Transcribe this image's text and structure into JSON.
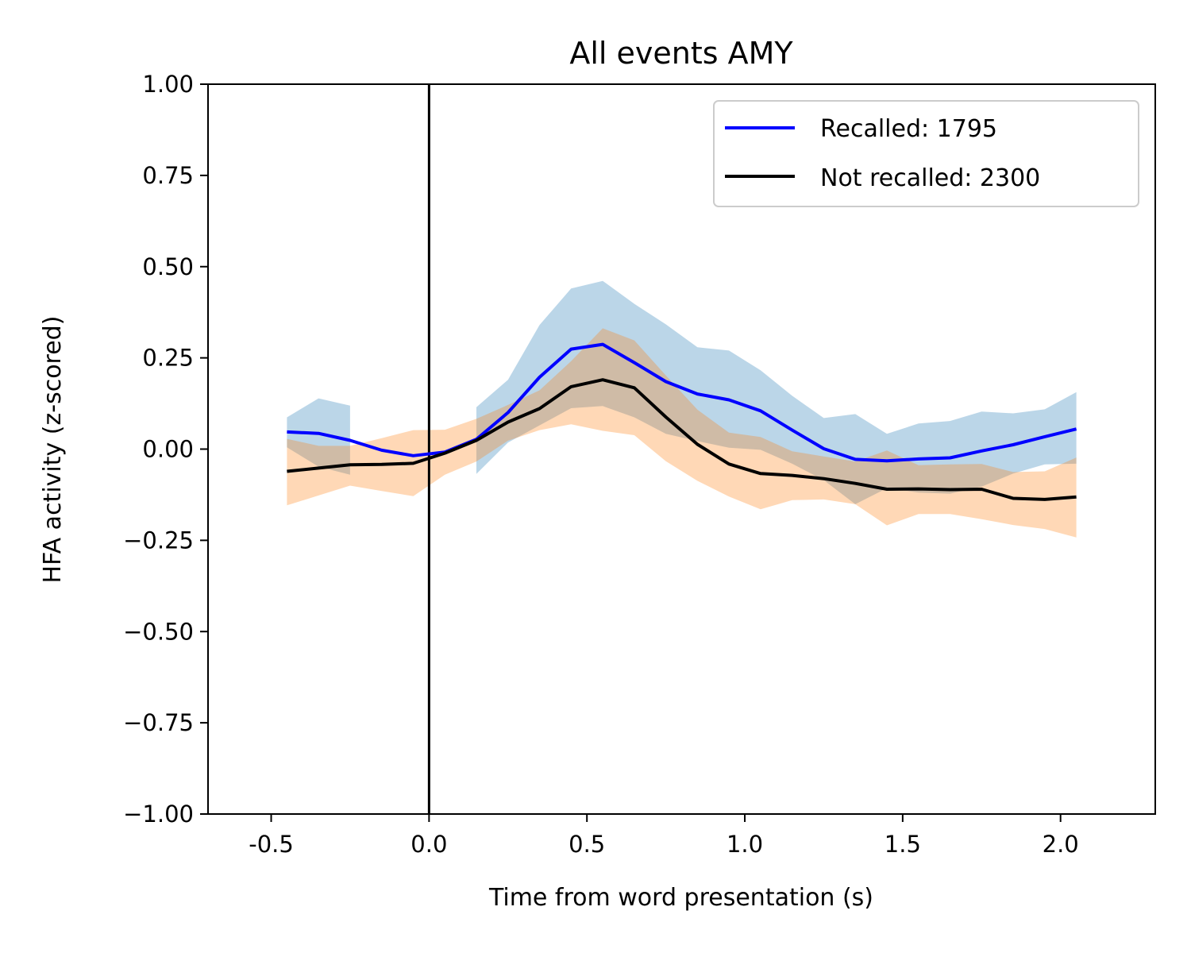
{
  "chart_data": {
    "type": "line",
    "title": "All events AMY",
    "xlabel": "Time from word presentation (s)",
    "ylabel": "HFA activity (z-scored)",
    "xlim": [
      -0.7,
      2.3
    ],
    "ylim": [
      -1.0,
      1.0
    ],
    "xticks": [
      -0.5,
      0.0,
      0.5,
      1.0,
      1.5,
      2.0
    ],
    "xtick_labels": [
      "-0.5",
      "0.0",
      "0.5",
      "1.0",
      "1.5",
      "2.0"
    ],
    "yticks": [
      1.0,
      0.75,
      0.5,
      0.25,
      0.0,
      -0.25,
      -0.5,
      -0.75,
      -1.0
    ],
    "ytick_labels": [
      "1.00",
      "0.75",
      "0.50",
      "0.25",
      "0.00",
      "−0.25",
      "−0.50",
      "−0.75",
      "−1.00"
    ],
    "vline_x": 0.0,
    "grid": false,
    "legend_position": "top-right",
    "x": [
      -0.45,
      -0.35,
      -0.25,
      -0.15,
      -0.05,
      0.05,
      0.15,
      0.25,
      0.35,
      0.45,
      0.55,
      0.65,
      0.75,
      0.85,
      0.95,
      1.05,
      1.15,
      1.25,
      1.35,
      1.45,
      1.55,
      1.65,
      1.75,
      1.85,
      1.95,
      2.05
    ],
    "series": [
      {
        "name": "Recalled: 1795",
        "color": "#0000ff",
        "band_color": "#1f77b4",
        "values": [
          0.047,
          0.043,
          0.024,
          -0.003,
          -0.018,
          -0.008,
          0.027,
          0.1,
          0.197,
          0.274,
          0.287,
          0.237,
          0.185,
          0.151,
          0.135,
          0.105,
          0.052,
          0.001,
          -0.028,
          -0.032,
          -0.027,
          -0.024,
          -0.005,
          0.012,
          0.034,
          0.055
        ],
        "upper": [
          0.087,
          0.139,
          0.119,
          null,
          null,
          null,
          0.115,
          0.19,
          0.34,
          0.44,
          0.461,
          0.398,
          0.342,
          0.279,
          0.27,
          0.216,
          0.146,
          0.085,
          0.096,
          0.042,
          0.07,
          0.077,
          0.103,
          0.098,
          0.109,
          0.156
        ],
        "lower": [
          0.005,
          -0.048,
          -0.07,
          null,
          null,
          null,
          -0.068,
          0.018,
          0.065,
          0.112,
          0.118,
          0.087,
          0.042,
          0.022,
          0.004,
          -0.002,
          -0.04,
          -0.085,
          -0.151,
          -0.107,
          -0.119,
          -0.122,
          -0.103,
          -0.067,
          -0.042,
          -0.04
        ]
      },
      {
        "name": "Not recalled: 2300",
        "color": "#000000",
        "band_color": "#ff7f0e",
        "values": [
          -0.061,
          -0.052,
          -0.043,
          -0.042,
          -0.039,
          -0.011,
          0.024,
          0.074,
          0.111,
          0.171,
          0.19,
          0.168,
          0.088,
          0.013,
          -0.041,
          -0.067,
          -0.072,
          -0.081,
          -0.094,
          -0.11,
          -0.109,
          -0.111,
          -0.11,
          -0.135,
          -0.138,
          -0.131
        ],
        "upper": [
          0.028,
          0.009,
          0.009,
          0.03,
          0.052,
          0.053,
          0.083,
          0.121,
          0.161,
          0.241,
          0.331,
          0.298,
          0.202,
          0.108,
          0.045,
          0.033,
          -0.006,
          -0.02,
          -0.034,
          -0.004,
          -0.044,
          -0.042,
          -0.041,
          -0.063,
          -0.061,
          -0.023
        ],
        "lower": [
          -0.154,
          -0.127,
          -0.1,
          -0.115,
          -0.129,
          -0.07,
          -0.034,
          0.023,
          0.052,
          0.068,
          0.05,
          0.038,
          -0.033,
          -0.087,
          -0.13,
          -0.165,
          -0.14,
          -0.138,
          -0.151,
          -0.209,
          -0.178,
          -0.178,
          -0.192,
          -0.208,
          -0.219,
          -0.242
        ]
      }
    ]
  }
}
